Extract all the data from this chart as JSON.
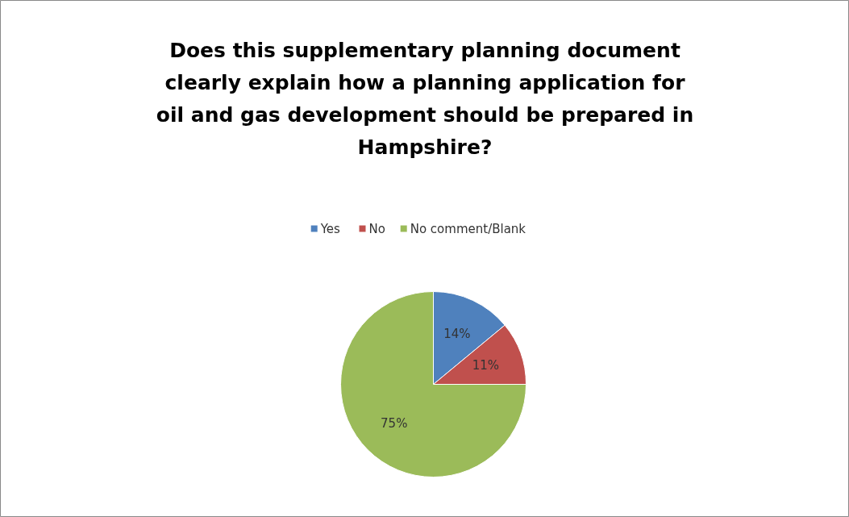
{
  "chart_data": {
    "type": "pie",
    "title": "Does this supplementary planning document clearly explain how a planning application for oil and gas development should be prepared in Hampshire?",
    "categories": [
      "Yes",
      "No",
      "No comment/Blank"
    ],
    "values": [
      14,
      11,
      75
    ],
    "colors": [
      "#4f81bd",
      "#c0504d",
      "#9bbb59"
    ],
    "value_labels": [
      "14%",
      "11%",
      "75%"
    ],
    "legend": "top"
  }
}
